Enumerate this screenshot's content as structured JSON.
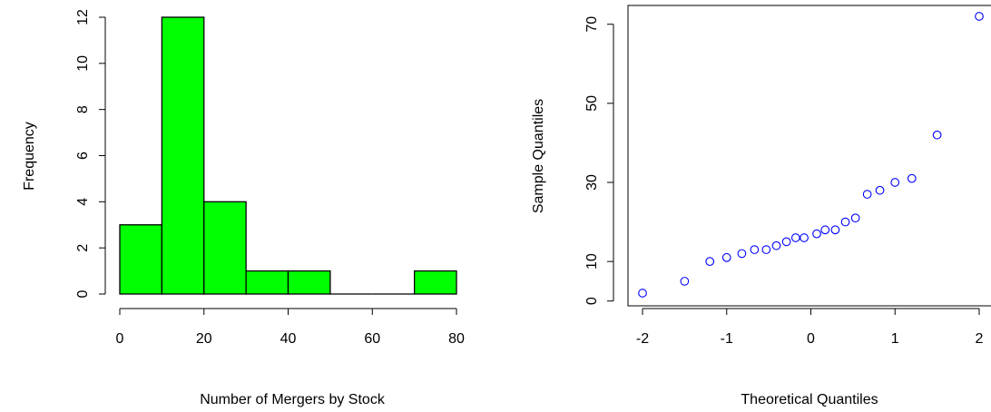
{
  "chart_data": [
    {
      "type": "bar",
      "title": "",
      "xlabel": "Number of Mergers by Stock",
      "ylabel": "Frequency",
      "bins": [
        [
          0,
          10
        ],
        [
          10,
          20
        ],
        [
          20,
          30
        ],
        [
          30,
          40
        ],
        [
          40,
          50
        ],
        [
          50,
          60
        ],
        [
          60,
          70
        ],
        [
          70,
          80
        ]
      ],
      "values": [
        3,
        12,
        4,
        1,
        1,
        0,
        0,
        1
      ],
      "xlim": [
        0,
        80
      ],
      "ylim": [
        0,
        12
      ],
      "xticks": [
        0,
        20,
        40,
        60,
        80
      ],
      "yticks": [
        0,
        2,
        4,
        6,
        8,
        10,
        12
      ],
      "grid": false,
      "colors": {
        "bar_fill": "#00ff00",
        "bar_stroke": "#000000"
      }
    },
    {
      "type": "scatter",
      "title": "",
      "xlabel": "Theoretical Quantiles",
      "ylabel": "Sample Quantiles",
      "x": [
        -2.0,
        -1.5,
        -1.2,
        -1.0,
        -0.82,
        -0.67,
        -0.53,
        -0.41,
        -0.29,
        -0.18,
        -0.08,
        0.07,
        0.17,
        0.29,
        0.41,
        0.53,
        0.67,
        0.82,
        1.0,
        1.2,
        1.5,
        2.0
      ],
      "y": [
        2,
        5,
        10,
        11,
        12,
        13,
        13,
        14,
        15,
        16,
        16,
        17,
        18,
        18,
        20,
        21,
        27,
        28,
        30,
        31,
        42,
        72
      ],
      "xlim": [
        -2.0,
        2.0
      ],
      "ylim": [
        2,
        72
      ],
      "xticks": [
        -2,
        -1,
        0,
        1,
        2
      ],
      "yticks": [
        0,
        10,
        30,
        50,
        70
      ],
      "grid": false,
      "colors": {
        "point_stroke": "#0000ff"
      }
    }
  ]
}
